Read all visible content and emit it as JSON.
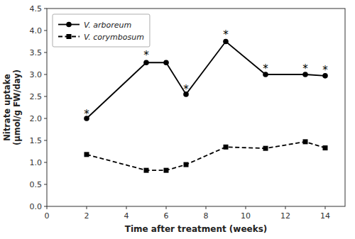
{
  "chart_data": {
    "type": "line",
    "x": [
      2,
      5,
      6,
      7,
      9,
      11,
      13,
      14
    ],
    "series": [
      {
        "name": "V. arboreum",
        "color": "black",
        "marker": "circle",
        "line_style": "solid",
        "values": [
          2.0,
          3.27,
          3.27,
          2.55,
          3.75,
          3.0,
          3.0,
          2.97
        ]
      },
      {
        "name": "V. corymbosum",
        "color": "black",
        "marker": "square",
        "line_style": "dashed",
        "values": [
          1.18,
          0.82,
          0.82,
          0.95,
          1.35,
          1.32,
          1.47,
          1.33
        ]
      }
    ],
    "annotations": [
      {
        "text": "*",
        "x": 2,
        "y": 2.12
      },
      {
        "text": "*",
        "x": 5,
        "y": 3.45
      },
      {
        "text": "*",
        "x": 7,
        "y": 2.68
      },
      {
        "text": "*",
        "x": 9,
        "y": 3.92
      },
      {
        "text": "*",
        "x": 11,
        "y": 3.15
      },
      {
        "text": "*",
        "x": 13,
        "y": 3.15
      },
      {
        "text": "*",
        "x": 14,
        "y": 3.12
      }
    ],
    "xlabel": "Time after treatment (weeks)",
    "ylabel": "Nitrate uptake\n(μmol/g FW/day)",
    "xlim": [
      0,
      15
    ],
    "ylim": [
      0.0,
      4.5
    ],
    "xticks": [
      0,
      2,
      4,
      6,
      8,
      10,
      12,
      14
    ],
    "yticks": [
      {
        "value": 0.0,
        "label": "0.0"
      },
      0.5,
      {
        "value": 1.0,
        "label": "1.0"
      },
      1.5,
      {
        "value": 2.0,
        "label": "2.0"
      },
      2.5,
      {
        "value": 3.0,
        "label": "3.0"
      },
      3.5,
      {
        "value": 4.0,
        "label": "4.0"
      },
      4.5
    ],
    "grid": false,
    "legend": "upper left"
  }
}
